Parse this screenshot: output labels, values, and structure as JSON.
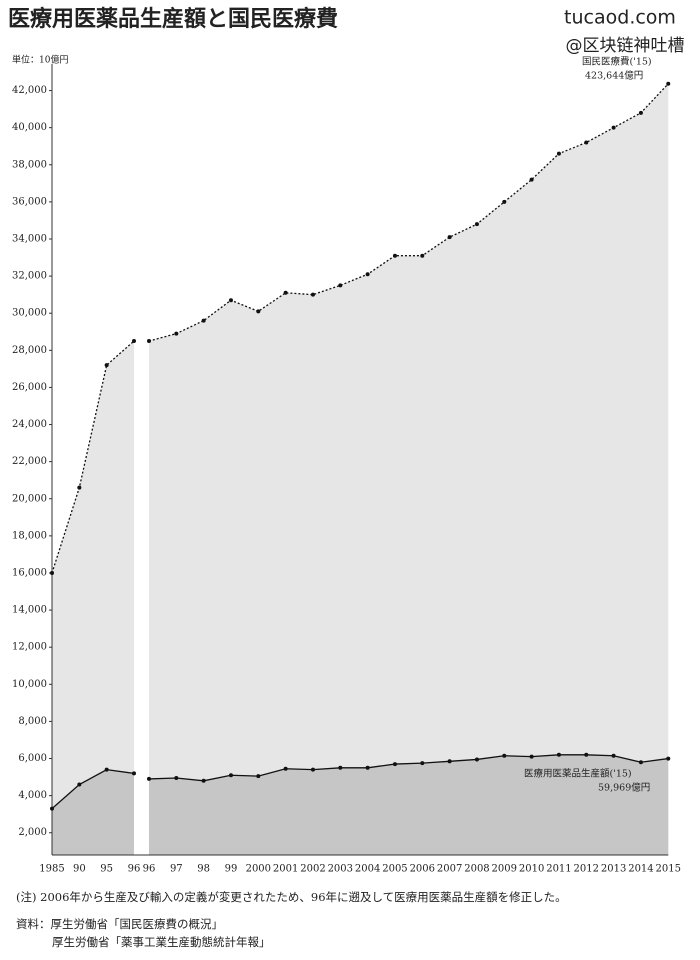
{
  "chart_data": {
    "type": "area",
    "title": "医療用医薬品生産額と国民医療費",
    "unit_label": "単位：10億円",
    "watermark": [
      "tucaod.com",
      "@区块链神吐槽"
    ],
    "categories": [
      "1985",
      "90",
      "95",
      "96",
      null,
      "96",
      "97",
      "98",
      "99",
      "2000",
      "2001",
      "2002",
      "2003",
      "2004",
      "2005",
      "2006",
      "2007",
      "2008",
      "2009",
      "2010",
      "2011",
      "2012",
      "2013",
      "2014",
      "2015"
    ],
    "series": [
      {
        "name": "国民医療費",
        "color": "#e6e6e6",
        "line_style": "dotted",
        "values": [
          16000,
          20600,
          27200,
          28500,
          null,
          28500,
          28900,
          29600,
          30700,
          30100,
          31100,
          31000,
          31500,
          32100,
          33100,
          33100,
          34100,
          34800,
          36000,
          37200,
          38600,
          39200,
          40000,
          40800,
          42364
        ]
      },
      {
        "name": "医療用医薬品生産額",
        "color": "#c6c6c6",
        "line_style": "solid",
        "values": [
          3300,
          4600,
          5400,
          5200,
          null,
          4900,
          4950,
          4800,
          5100,
          5050,
          5450,
          5400,
          5500,
          5500,
          5700,
          5750,
          5850,
          5950,
          6150,
          6100,
          6200,
          6200,
          6150,
          5800,
          5997
        ]
      }
    ],
    "annotations": [
      {
        "text": "国民医療費('15)",
        "value_label": "423,644億円"
      },
      {
        "text": "医療用医薬品生産額('15)",
        "value_label": "59,969億円"
      }
    ],
    "ylim": [
      800,
      43000
    ],
    "yticks": [
      {
        "value": 2000,
        "label": "2,000"
      },
      {
        "value": 4000,
        "label": "4,000"
      },
      {
        "value": 6000,
        "label": "6,000"
      },
      {
        "value": 8000,
        "label": "8,000"
      },
      {
        "value": 10000,
        "label": "10,000"
      },
      {
        "value": 12000,
        "label": "12,000"
      },
      {
        "value": 14000,
        "label": "14,000"
      },
      {
        "value": 16000,
        "label": "16,000"
      },
      {
        "value": 18000,
        "label": "18,000"
      },
      {
        "value": 20000,
        "label": "20,000"
      },
      {
        "value": 22000,
        "label": "22,000"
      },
      {
        "value": 24000,
        "label": "24,000"
      },
      {
        "value": 26000,
        "label": "26,000"
      },
      {
        "value": 28000,
        "label": "28,000"
      },
      {
        "value": 30000,
        "label": "30,000"
      },
      {
        "value": 32000,
        "label": "32,000"
      },
      {
        "value": 34000,
        "label": "34,000"
      },
      {
        "value": 36000,
        "label": "36,000"
      },
      {
        "value": 38000,
        "label": "38,000"
      },
      {
        "value": 40000,
        "label": "40,000"
      },
      {
        "value": 42000,
        "label": "42,000"
      }
    ],
    "grid": false,
    "notes": [
      "(注) 2006年から生産及び輸入の定義が変更されたため、96年に遡及して医療用医薬品生産額を修正した。",
      "資料：厚生労働省「国民医療費の概況」",
      "厚生労働省「薬事工業生産動態統計年報」"
    ]
  }
}
